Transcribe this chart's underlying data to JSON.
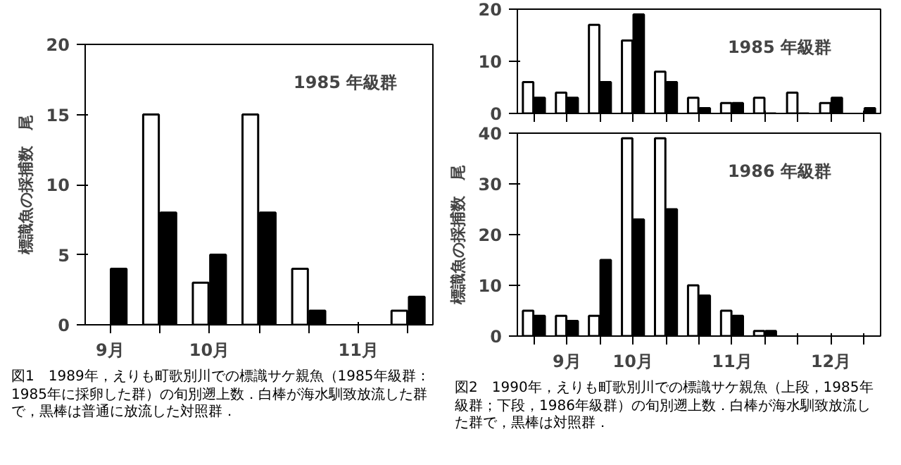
{
  "chart_data": [
    {
      "type": "bar",
      "title": "1985 年級群",
      "ylabel": "標識魚の採捕数　尾",
      "categories": [
        "9月",
        null,
        "10月",
        null,
        null,
        "11月",
        null
      ],
      "ylim": [
        0,
        20
      ],
      "yticks": [
        0,
        5,
        10,
        15,
        20
      ],
      "grid": false,
      "series": [
        {
          "color": "#ffffff",
          "values": [
            null,
            15,
            3,
            15,
            4,
            null,
            1
          ]
        },
        {
          "color": "#000000",
          "values": [
            4,
            8,
            5,
            8,
            1,
            null,
            2
          ]
        }
      ],
      "annotations": [
        "図1　1989年，えりも町歌別川での標識サケ親魚（1985年級群：1985年に採卵した群）の旬別遡上数．白棒が海水馴致放流した群で，黒棒は普通に放流した対照群．"
      ]
    },
    {
      "type": "bar",
      "title": "1985 年級群",
      "categories": [
        null,
        null,
        null,
        null,
        null,
        null,
        null,
        null,
        null,
        null,
        null
      ],
      "ylim": [
        0,
        20
      ],
      "yticks": [
        0,
        10,
        20
      ],
      "grid": false,
      "tick_labels": "y",
      "series": [
        {
          "color": "#ffffff",
          "values": [
            6,
            4,
            17,
            14,
            8,
            3,
            2,
            3,
            4,
            2,
            0
          ]
        },
        {
          "color": "#000000",
          "values": [
            3,
            3,
            6,
            19,
            6,
            1,
            2,
            0,
            0,
            3,
            1
          ]
        }
      ]
    },
    {
      "type": "bar",
      "title": "1986 年級群",
      "ylabel": "標識魚の採捕数　尾",
      "categories": [
        null,
        "9月",
        null,
        "10月",
        null,
        null,
        "11月",
        null,
        null,
        "12月",
        null
      ],
      "ylim": [
        0,
        40
      ],
      "yticks": [
        0,
        10,
        20,
        30,
        40
      ],
      "grid": false,
      "series": [
        {
          "color": "#ffffff",
          "values": [
            5,
            4,
            4,
            39,
            39,
            10,
            5,
            1,
            null,
            null,
            null
          ]
        },
        {
          "color": "#000000",
          "values": [
            4,
            3,
            15,
            23,
            25,
            8,
            4,
            1,
            null,
            null,
            null
          ]
        }
      ],
      "annotations": [
        "図2　1990年，えりも町歌別川での標識サケ親魚（上段，1985年級群；下段，1986年級群）の旬別遡上数．白棒が海水馴致放流した群で，黒棒は対照群．"
      ]
    }
  ]
}
